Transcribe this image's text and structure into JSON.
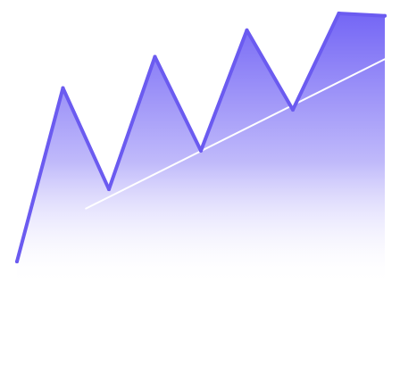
{
  "chart_data": {
    "type": "area",
    "title": "",
    "xlabel": "",
    "ylabel": "",
    "grid": false,
    "legend": "none",
    "x": [
      0,
      1,
      2,
      3,
      4,
      5,
      6,
      7,
      8
    ],
    "series": [
      {
        "values": [
          10,
          82,
          40,
          95,
          56,
          106,
          73,
          113,
          112
        ]
      }
    ],
    "trendline": {
      "x": [
        1.5,
        8
      ],
      "values": [
        32,
        94
      ]
    },
    "xlim": [
      0,
      8
    ],
    "ylim": [
      0,
      113
    ]
  },
  "colors": {
    "line": "#6b5bf0",
    "fill_top": "#7466f5",
    "fill_bottom": "#ffffff",
    "trendline": "#ffffff"
  }
}
